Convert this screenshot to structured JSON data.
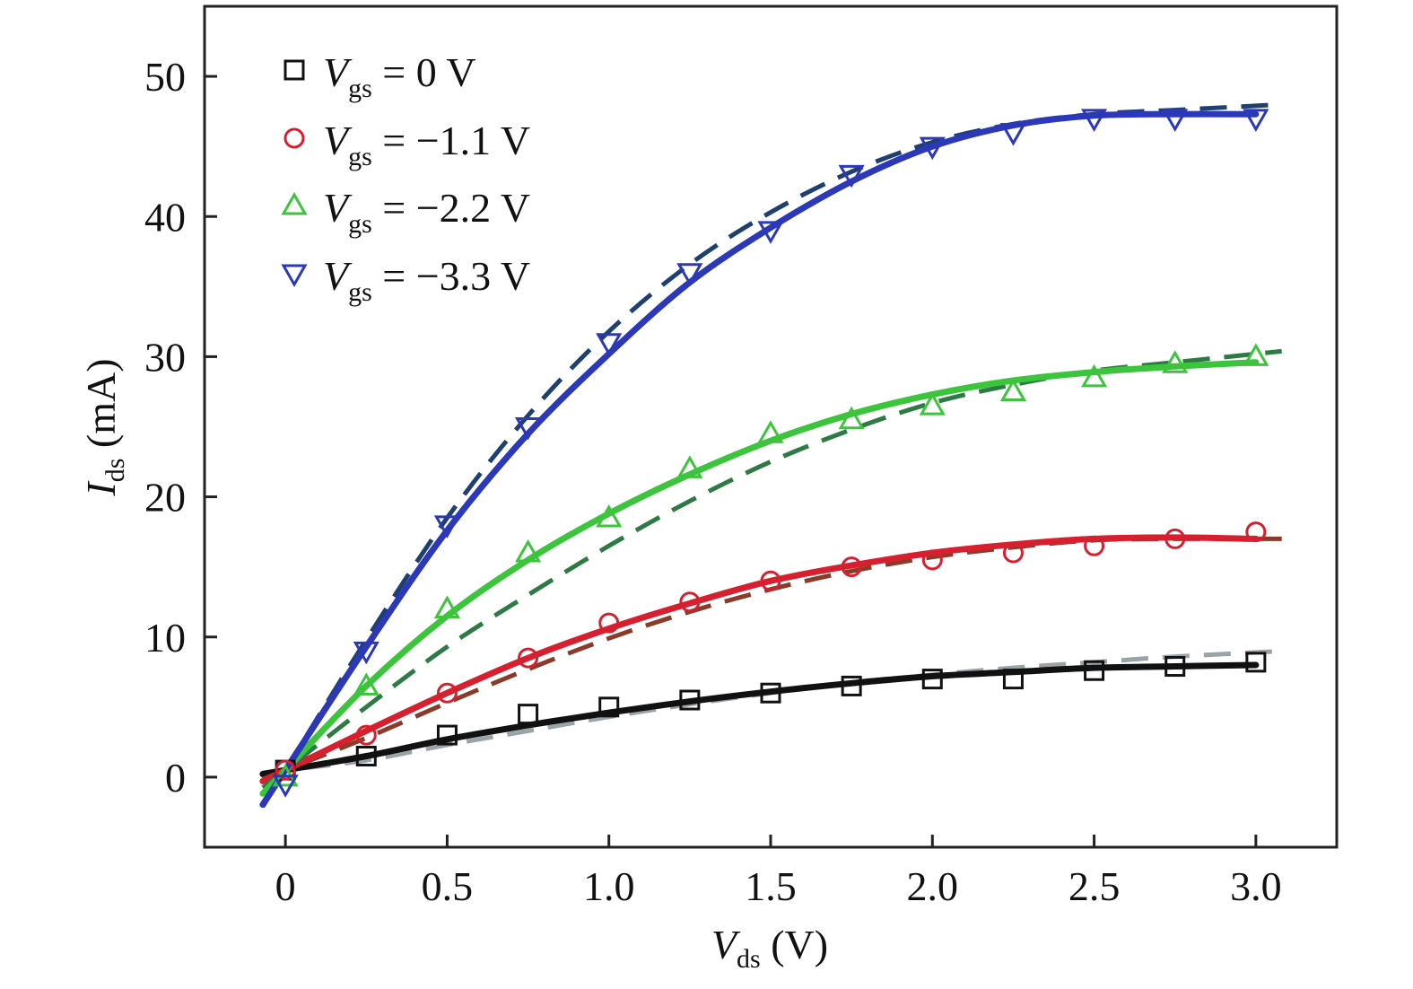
{
  "chart_data": {
    "type": "line",
    "xlabel": {
      "symbol": "V",
      "subscript": "ds",
      "unit": " (V)"
    },
    "ylabel": {
      "symbol": "I",
      "subscript": "ds",
      "unit": " (mA)"
    },
    "xlim": [
      -0.25,
      3.25
    ],
    "ylim": [
      -5,
      55
    ],
    "xticks": [
      0,
      0.5,
      1.0,
      1.5,
      2.0,
      2.5,
      3.0
    ],
    "xtick_labels": [
      "0",
      "0.5",
      "1.0",
      "1.5",
      "2.0",
      "2.5",
      "3.0"
    ],
    "yticks": [
      0,
      10,
      20,
      30,
      40,
      50
    ],
    "ytick_labels": [
      "0",
      "10",
      "20",
      "30",
      "40",
      "50"
    ],
    "grid": false,
    "legend_position": "top-left",
    "series": [
      {
        "name": "V_gs = 0 V",
        "legend": {
          "symbol": "V",
          "subscript": "gs",
          "rest": " = 0 V"
        },
        "marker": "square",
        "color": "#111111",
        "fit_color": "#111111",
        "dash_color": "#9aa3a8",
        "x": [
          0,
          0.25,
          0.5,
          0.75,
          1.0,
          1.25,
          1.5,
          1.75,
          2.0,
          2.25,
          2.5,
          2.75,
          3.0
        ],
        "values": [
          0.5,
          1.5,
          3.0,
          4.5,
          5.0,
          5.5,
          6.0,
          6.5,
          7.0,
          7.0,
          7.6,
          7.9,
          8.2
        ],
        "fit": [
          0.5,
          1.5,
          2.7,
          3.7,
          4.6,
          5.4,
          6.1,
          6.7,
          7.2,
          7.5,
          7.8,
          7.9,
          8.0
        ],
        "dash": [
          0.5,
          1.2,
          2.3,
          3.3,
          4.3,
          5.2,
          6.0,
          6.7,
          7.3,
          7.8,
          8.2,
          8.6,
          8.9
        ]
      },
      {
        "name": "V_gs = −1.1 V",
        "legend": {
          "symbol": "V",
          "subscript": "gs",
          "rest": " = −1.1 V"
        },
        "marker": "circle",
        "color": "#d6202f",
        "fit_color": "#d6202f",
        "dash_color": "#8a3b2a",
        "x": [
          0,
          0.25,
          0.5,
          0.75,
          1.0,
          1.25,
          1.5,
          1.75,
          2.0,
          2.25,
          2.5,
          2.75,
          3.0
        ],
        "values": [
          0.5,
          3.0,
          6.0,
          8.5,
          11.0,
          12.5,
          14.0,
          15.0,
          15.5,
          16.0,
          16.5,
          17.0,
          17.5
        ],
        "fit": [
          0.5,
          3.3,
          6.0,
          8.5,
          10.6,
          12.4,
          14.0,
          15.1,
          16.0,
          16.6,
          17.0,
          17.1,
          17.0
        ],
        "dash": [
          0.5,
          2.8,
          5.3,
          7.7,
          9.9,
          11.8,
          13.4,
          14.7,
          15.7,
          16.4,
          16.9,
          17.0,
          17.0
        ]
      },
      {
        "name": "V_gs = −2.2 V",
        "legend": {
          "symbol": "V",
          "subscript": "gs",
          "rest": " = −2.2 V"
        },
        "marker": "triangle-up",
        "color": "#3cc43c",
        "fit_color": "#3cc43c",
        "dash_color": "#2d7a44",
        "x": [
          0,
          0.25,
          0.5,
          0.75,
          1.0,
          1.25,
          1.5,
          1.75,
          2.0,
          2.25,
          2.5,
          2.75,
          3.0
        ],
        "values": [
          0.0,
          6.5,
          12.0,
          16.0,
          18.5,
          22.0,
          24.5,
          25.5,
          26.5,
          27.5,
          28.5,
          29.5,
          30.0
        ],
        "fit": [
          0.5,
          6.5,
          11.5,
          15.5,
          18.8,
          21.6,
          24.0,
          25.9,
          27.3,
          28.3,
          28.9,
          29.3,
          29.6
        ],
        "dash": [
          0.5,
          5.0,
          9.3,
          13.0,
          16.5,
          19.7,
          22.5,
          24.8,
          26.7,
          28.0,
          29.0,
          29.6,
          30.2
        ]
      },
      {
        "name": "V_gs = −3.3 V",
        "legend": {
          "symbol": "V",
          "subscript": "gs",
          "rest": " = −3.3 V"
        },
        "marker": "triangle-down",
        "color": "#2b38b8",
        "fit_color": "#2b38b8",
        "dash_color": "#1f3f6e",
        "x": [
          0,
          0.25,
          0.5,
          0.75,
          1.0,
          1.25,
          1.5,
          1.75,
          2.0,
          2.25,
          2.5,
          2.75,
          3.0
        ],
        "values": [
          -0.5,
          9.0,
          18.0,
          25.0,
          31.0,
          36.0,
          39.0,
          43.0,
          45.0,
          46.0,
          47.0,
          47.0,
          47.0
        ],
        "fit": [
          0.5,
          9.3,
          17.6,
          24.5,
          30.2,
          35.3,
          39.2,
          42.5,
          45.0,
          46.5,
          47.2,
          47.3,
          47.3
        ],
        "dash": [
          0.5,
          9.8,
          18.5,
          25.8,
          31.8,
          36.6,
          40.3,
          43.2,
          45.3,
          46.6,
          47.3,
          47.6,
          47.9
        ]
      }
    ]
  }
}
